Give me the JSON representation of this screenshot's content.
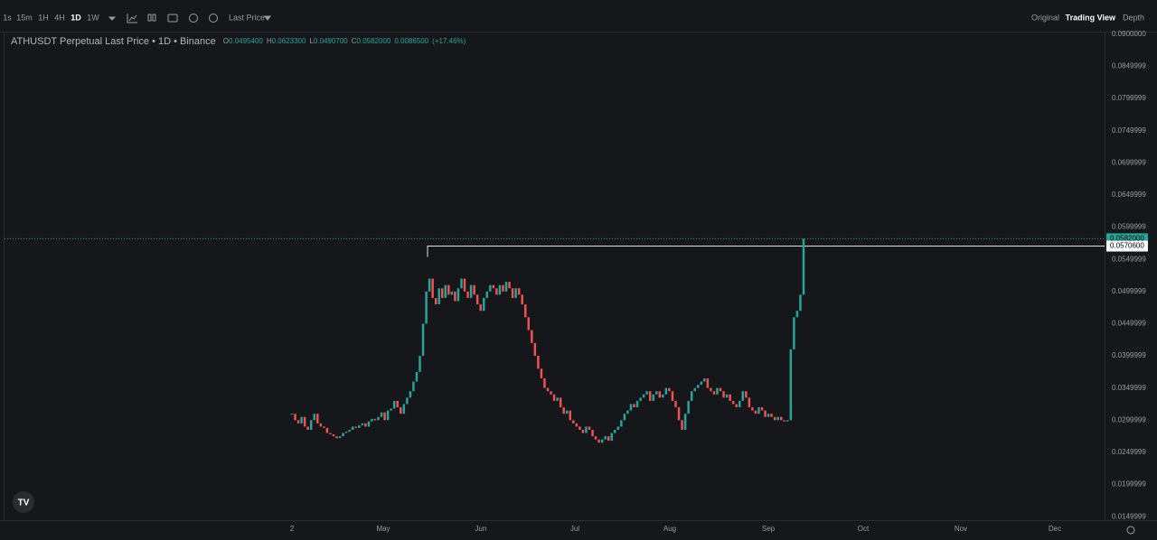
{
  "toolbar": {
    "intervals": [
      "1s",
      "15m",
      "1H",
      "4H",
      "1D",
      "1W"
    ],
    "price_type": "Last Price",
    "views": [
      "Original",
      "Trading View",
      "Depth"
    ]
  },
  "chart_data": {
    "type": "candlestick",
    "title": "ATHUSDT Perpetual Last Price • 1D • Binance",
    "ohlc": [
      {
        "key": "O",
        "value": "0.0495400"
      },
      {
        "key": "H",
        "value": "0.0623300"
      },
      {
        "key": "L",
        "value": "0.0490700"
      },
      {
        "key": "C",
        "value": "0.0582000"
      }
    ],
    "change": "0.0086500",
    "change_pct": "(+17.46%)",
    "close": [
      0.031,
      0.03,
      0.0295,
      0.0305,
      0.029,
      0.0285,
      0.03,
      0.031,
      0.0295,
      0.029,
      0.0288,
      0.028,
      0.0278,
      0.0275,
      0.0272,
      0.0275,
      0.028,
      0.0282,
      0.0285,
      0.029,
      0.0288,
      0.0292,
      0.0295,
      0.029,
      0.0298,
      0.0302,
      0.03,
      0.0305,
      0.0312,
      0.03,
      0.0315,
      0.0318,
      0.033,
      0.032,
      0.031,
      0.0325,
      0.0335,
      0.0345,
      0.036,
      0.0375,
      0.04,
      0.045,
      0.05,
      0.052,
      0.049,
      0.048,
      0.0505,
      0.049,
      0.051,
      0.0495,
      0.05,
      0.0485,
      0.0505,
      0.052,
      0.05,
      0.049,
      0.051,
      0.0495,
      0.048,
      0.047,
      0.049,
      0.05,
      0.051,
      0.0505,
      0.0495,
      0.051,
      0.05,
      0.0515,
      0.0505,
      0.049,
      0.0505,
      0.0495,
      0.048,
      0.046,
      0.044,
      0.042,
      0.04,
      0.038,
      0.0365,
      0.035,
      0.0345,
      0.034,
      0.033,
      0.0335,
      0.032,
      0.031,
      0.0315,
      0.03,
      0.0295,
      0.029,
      0.0285,
      0.028,
      0.029,
      0.0285,
      0.0275,
      0.027,
      0.0265,
      0.027,
      0.0275,
      0.0268,
      0.028,
      0.0285,
      0.029,
      0.03,
      0.031,
      0.0315,
      0.0325,
      0.032,
      0.033,
      0.0335,
      0.034,
      0.0345,
      0.033,
      0.034,
      0.0345,
      0.0335,
      0.034,
      0.035,
      0.0345,
      0.033,
      0.032,
      0.03,
      0.0285,
      0.031,
      0.033,
      0.0345,
      0.035,
      0.0355,
      0.036,
      0.0365,
      0.035,
      0.0345,
      0.034,
      0.035,
      0.0345,
      0.0335,
      0.034,
      0.033,
      0.0325,
      0.032,
      0.033,
      0.0345,
      0.0335,
      0.032,
      0.0315,
      0.031,
      0.032,
      0.0315,
      0.0305,
      0.031,
      0.0305,
      0.03,
      0.0305,
      0.03,
      0.0298,
      0.03,
      0.041,
      0.046,
      0.047,
      0.0495,
      0.0582
    ],
    "up_color": "#26a69a",
    "down_color": "#ef5350",
    "ylim": [
      0.0146,
      0.0904
    ],
    "yticks": [
      {
        "value": 0.09,
        "label": "0.0900000"
      },
      0.0849999,
      0.0799999,
      0.0749999,
      0.0699999,
      0.0649999,
      0.0599999,
      0.0549999,
      0.0499999,
      0.0449999,
      0.0399999,
      0.0349999,
      0.0299999,
      0.0249999,
      0.0199999,
      0.0149999
    ],
    "x_labels": [
      "2",
      "May",
      "Jun",
      "Jul",
      "Aug",
      "Sep",
      "Oct",
      "Nov",
      "Dec"
    ],
    "last_price": {
      "value": 0.0582,
      "label": "0.0582000"
    },
    "high_line": {
      "value": 0.05706,
      "label": "0.0570600"
    }
  }
}
